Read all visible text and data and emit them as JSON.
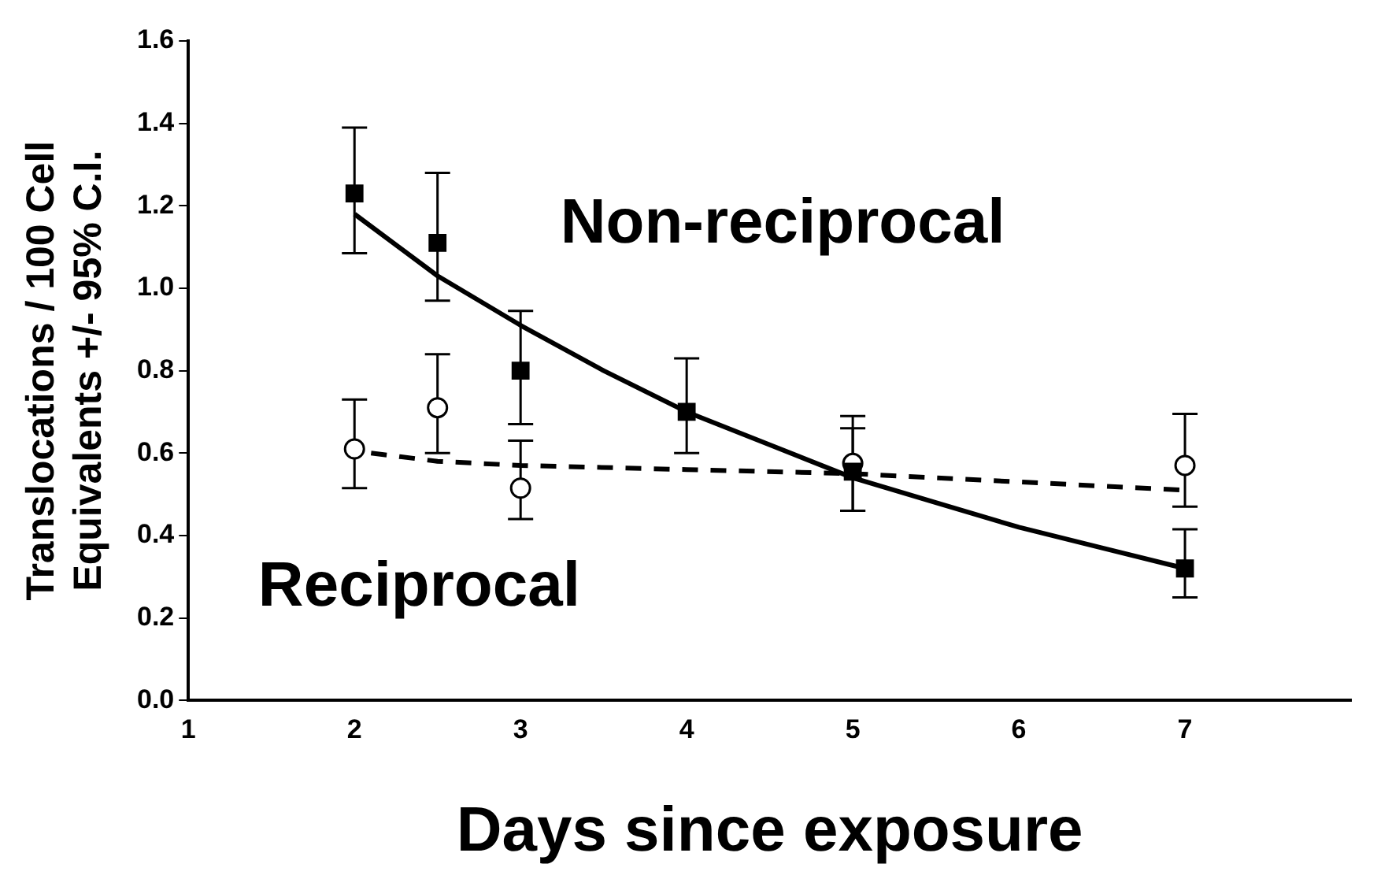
{
  "chart_data": {
    "type": "scatter",
    "xlabel": "Days since exposure",
    "ylabel": "Translocations / 100 Cell\nEquivalents +/- 95% C.I.",
    "xlim": [
      1,
      8
    ],
    "xticks": [
      1,
      2,
      3,
      4,
      5,
      6,
      7
    ],
    "ylim": [
      0,
      1.6
    ],
    "yticks": [
      {
        "value": 0,
        "label": "0.0"
      },
      0.2,
      0.4,
      0.6,
      0.8,
      {
        "value": 1,
        "label": "1.0"
      },
      1.2,
      1.4,
      1.6
    ],
    "grid": false,
    "series": [
      {
        "name": "Non-reciprocal",
        "type": "scatter",
        "marker": "square",
        "color": "#000000",
        "x": [
          2,
          2.5,
          3,
          4,
          5,
          7
        ],
        "values": [
          1.23,
          1.11,
          0.8,
          0.7,
          0.555,
          0.32
        ],
        "errors": [
          [
            1.085,
            1.39
          ],
          [
            0.97,
            1.28
          ],
          [
            0.67,
            0.945
          ],
          [
            0.6,
            0.83
          ],
          [
            0.46,
            0.66
          ],
          [
            0.25,
            0.415
          ]
        ]
      },
      {
        "name": "Reciprocal",
        "type": "scatter",
        "marker": "circle",
        "color": "#000000",
        "x": [
          2,
          2.5,
          3,
          4,
          5,
          7
        ],
        "values": [
          0.61,
          0.71,
          0.515,
          null,
          0.575,
          0.57
        ],
        "errors": [
          [
            0.515,
            0.73
          ],
          [
            0.6,
            0.84
          ],
          [
            0.44,
            0.63
          ],
          null,
          [
            0.46,
            0.69
          ],
          [
            0.47,
            0.695
          ]
        ]
      },
      {
        "type": "line",
        "line_style": "solid",
        "color": "#000000",
        "x": [
          2,
          2.5,
          3,
          3.5,
          4,
          4.5,
          5,
          5.5,
          6,
          6.5,
          7
        ],
        "values": [
          1.18,
          1.03,
          0.91,
          0.8,
          0.7,
          0.62,
          0.54,
          0.48,
          0.42,
          0.37,
          0.32
        ]
      },
      {
        "type": "line",
        "line_style": "dashed",
        "color": "#000000",
        "x": [
          2.1,
          2.5,
          3,
          4,
          5,
          6,
          7
        ],
        "values": [
          0.6,
          0.58,
          0.57,
          0.56,
          0.55,
          0.53,
          0.51
        ]
      }
    ]
  }
}
